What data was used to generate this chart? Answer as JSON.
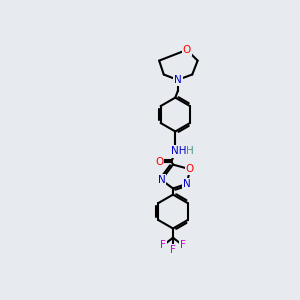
{
  "bg_color": [
    0.906,
    0.922,
    0.941,
    1.0
  ],
  "bond_color": "#000000",
  "bond_lw": 1.5,
  "atom_colors": {
    "O": "#ff0000",
    "N": "#0000cc",
    "F": "#cc00cc",
    "H": "#4a9090",
    "C": "#000000"
  },
  "font_size": 7.5,
  "fig_size": [
    3.0,
    3.0
  ],
  "dpi": 100
}
